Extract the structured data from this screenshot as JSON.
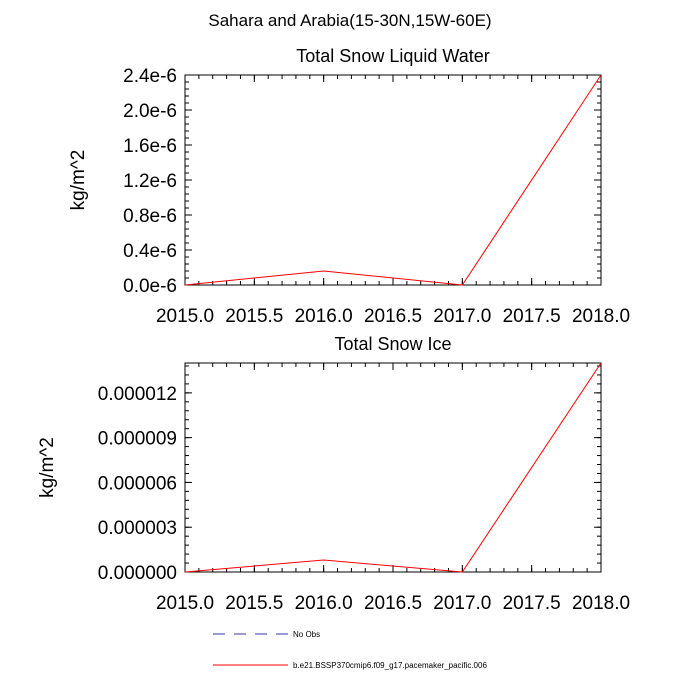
{
  "figure_title": "Sahara and Arabia(15-30N,15W-60E)",
  "chart_data": [
    {
      "type": "line",
      "title": "Total Snow Liquid Water",
      "xlabel": "",
      "ylabel": "kg/m^2",
      "xlim": [
        2015.0,
        2018.0
      ],
      "ylim": [
        0,
        2.4e-06
      ],
      "x_ticks": [
        2015.0,
        2015.5,
        2016.0,
        2016.5,
        2017.0,
        2017.5,
        2018.0
      ],
      "x_tick_labels": [
        "2015.0",
        "2015.5",
        "2016.0",
        "2016.5",
        "2017.0",
        "2017.5",
        "2018.0"
      ],
      "y_ticks": [
        0,
        4e-07,
        8e-07,
        1.2e-06,
        1.6e-06,
        2e-06,
        2.4e-06
      ],
      "y_tick_labels": [
        "0.0e-6",
        "0.4e-6",
        "0.8e-6",
        "1.2e-6",
        "1.6e-6",
        "2.0e-6",
        "2.4e-6"
      ],
      "grid": false,
      "series": [
        {
          "name": "b.e21.BSSP370cmip6.f09_g17.pacemaker_pacific.006",
          "color": "#ff0000",
          "x": [
            2015,
            2016,
            2017,
            2018
          ],
          "y": [
            0,
            1.6e-07,
            0,
            2.4e-06
          ]
        }
      ]
    },
    {
      "type": "line",
      "title": "Total Snow Ice",
      "xlabel": "",
      "ylabel": "kg/m^2",
      "xlim": [
        2015.0,
        2018.0
      ],
      "ylim": [
        0,
        1.4e-05
      ],
      "x_ticks": [
        2015.0,
        2015.5,
        2016.0,
        2016.5,
        2017.0,
        2017.5,
        2018.0
      ],
      "x_tick_labels": [
        "2015.0",
        "2015.5",
        "2016.0",
        "2016.5",
        "2017.0",
        "2017.5",
        "2018.0"
      ],
      "y_ticks": [
        0,
        3e-06,
        6e-06,
        9e-06,
        1.2e-05
      ],
      "y_tick_labels": [
        "0.000000",
        "0.000003",
        "0.000006",
        "0.000009",
        "0.000012"
      ],
      "grid": false,
      "series": [
        {
          "name": "b.e21.BSSP370cmip6.f09_g17.pacemaker_pacific.006",
          "color": "#ff0000",
          "x": [
            2015,
            2016,
            2017,
            2018
          ],
          "y": [
            0,
            8e-07,
            0,
            1.4e-05
          ]
        }
      ]
    }
  ],
  "legend": {
    "placement": "bottom",
    "entries": [
      {
        "label": "No Obs",
        "color": "#3333aa",
        "style": "dashed"
      },
      {
        "label": "b.e21.BSSP370cmip6.f09_g17.pacemaker_pacific.006",
        "color": "#ff0000",
        "style": "solid"
      }
    ]
  }
}
